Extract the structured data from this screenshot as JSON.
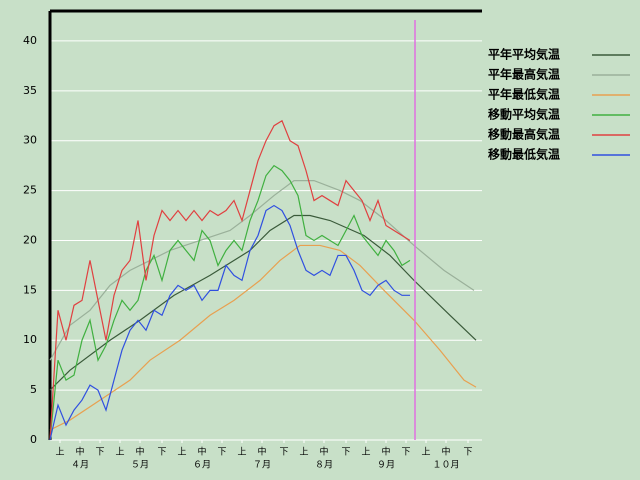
{
  "chart_data": {
    "type": "line",
    "xlim": [
      0,
      216
    ],
    "ylim": [
      0,
      43
    ],
    "yticks": [
      0,
      5,
      10,
      15,
      20,
      25,
      30,
      35,
      40
    ],
    "xticks": [
      {
        "value": 5,
        "label": "上"
      },
      {
        "value": 15,
        "label": "中"
      },
      {
        "value": 25,
        "label": "下"
      },
      {
        "value": 35,
        "label": "上"
      },
      {
        "value": 45,
        "label": "中"
      },
      {
        "value": 56,
        "label": "下"
      },
      {
        "value": 66,
        "label": "上"
      },
      {
        "value": 76,
        "label": "中"
      },
      {
        "value": 86,
        "label": "下"
      },
      {
        "value": 96,
        "label": "上"
      },
      {
        "value": 106,
        "label": "中"
      },
      {
        "value": 117,
        "label": "下"
      },
      {
        "value": 127,
        "label": "上"
      },
      {
        "value": 137,
        "label": "中"
      },
      {
        "value": 148,
        "label": "下"
      },
      {
        "value": 158,
        "label": "上"
      },
      {
        "value": 168,
        "label": "中"
      },
      {
        "value": 178,
        "label": "下"
      },
      {
        "value": 188,
        "label": "上"
      },
      {
        "value": 198,
        "label": "中"
      },
      {
        "value": 209,
        "label": "下"
      }
    ],
    "month_ticks": [
      {
        "value": 15,
        "label": "４月"
      },
      {
        "value": 45,
        "label": "５月"
      },
      {
        "value": 76,
        "label": "６月"
      },
      {
        "value": 106,
        "label": "７月"
      },
      {
        "value": 137,
        "label": "８月"
      },
      {
        "value": 168,
        "label": "９月"
      },
      {
        "value": 198,
        "label": "１０月"
      }
    ],
    "grid": true,
    "marker_line": {
      "value": 182.5,
      "color": "#e070e0"
    },
    "series": [
      {
        "name": "平年平均気温",
        "color": "#3a5a3a",
        "x": [
          0,
          10,
          30,
          45,
          62,
          80,
          100,
          110,
          122,
          130,
          140,
          157,
          170,
          182,
          200,
          213
        ],
        "values": [
          5,
          7,
          10,
          12,
          14.5,
          16.5,
          19,
          21,
          22.5,
          22.5,
          22,
          20.5,
          18.5,
          16,
          12.5,
          10
        ]
      },
      {
        "name": "平年最高気温",
        "color": "#9ab09a",
        "x": [
          0,
          10,
          20,
          30,
          40,
          50,
          60,
          75,
          90,
          100,
          112,
          122,
          132,
          145,
          155,
          168,
          182,
          197,
          212
        ],
        "values": [
          8,
          11.5,
          13,
          15.5,
          17,
          18,
          19,
          20,
          21,
          22.5,
          24.5,
          26,
          26,
          25,
          24,
          22,
          19.5,
          17,
          15
        ]
      },
      {
        "name": "平年最低気温",
        "color": "#e8a050",
        "x": [
          0,
          10,
          25,
          40,
          50,
          65,
          80,
          92,
          105,
          115,
          125,
          135,
          145,
          155,
          167,
          182,
          195,
          207,
          213
        ],
        "values": [
          1,
          2,
          4,
          6,
          8,
          10,
          12.5,
          14,
          16,
          18,
          19.5,
          19.5,
          19,
          17.5,
          15,
          12,
          9,
          6,
          5.3
        ]
      },
      {
        "name": "移動平均気温",
        "color": "#40b040",
        "x": [
          0,
          4,
          8,
          12,
          16,
          20,
          24,
          28,
          32,
          36,
          40,
          44,
          48,
          52,
          56,
          60,
          64,
          68,
          72,
          76,
          80,
          84,
          88,
          92,
          96,
          100,
          104,
          108,
          112,
          116,
          120,
          124,
          128,
          132,
          136,
          140,
          144,
          148,
          152,
          156,
          160,
          164,
          168,
          172,
          176,
          180
        ],
        "values": [
          0,
          8,
          6,
          6.5,
          10,
          12,
          8,
          9.5,
          12,
          14,
          13,
          14,
          17,
          18.5,
          16,
          19,
          20,
          19,
          18,
          21,
          20,
          17.5,
          19,
          20,
          19,
          22,
          24,
          26.5,
          27.5,
          27,
          26,
          24.5,
          20.5,
          20,
          20.5,
          20,
          19.5,
          21,
          22.5,
          20.5,
          19.5,
          18.5,
          20,
          19,
          17.5,
          18
        ]
      },
      {
        "name": "移動最高気温",
        "color": "#e04040",
        "x": [
          0,
          4,
          8,
          12,
          16,
          20,
          24,
          28,
          32,
          36,
          40,
          44,
          48,
          52,
          56,
          60,
          64,
          68,
          72,
          76,
          80,
          84,
          88,
          92,
          96,
          100,
          104,
          108,
          112,
          116,
          120,
          124,
          128,
          132,
          136,
          140,
          144,
          148,
          152,
          156,
          160,
          164,
          168,
          172,
          176,
          180
        ],
        "values": [
          0,
          13,
          10,
          13.5,
          14,
          18,
          14,
          10,
          14.5,
          17,
          18,
          22,
          16,
          20.5,
          23,
          22,
          23,
          22,
          23,
          22,
          23,
          22.5,
          23,
          24,
          22,
          25,
          28,
          30,
          31.5,
          32,
          30,
          29.5,
          27,
          24,
          24.5,
          24,
          23.5,
          26,
          25,
          24,
          22,
          24,
          21.5,
          21,
          20.5,
          20
        ]
      },
      {
        "name": "移動最低気温",
        "color": "#3050e0",
        "x": [
          0,
          4,
          8,
          12,
          16,
          20,
          24,
          28,
          32,
          36,
          40,
          44,
          48,
          52,
          56,
          60,
          64,
          68,
          72,
          76,
          80,
          84,
          88,
          92,
          96,
          100,
          104,
          108,
          112,
          116,
          120,
          124,
          128,
          132,
          136,
          140,
          144,
          148,
          152,
          156,
          160,
          164,
          168,
          172,
          176,
          180
        ],
        "values": [
          0,
          3.5,
          1.5,
          3,
          4,
          5.5,
          5,
          3,
          6,
          9,
          11,
          12,
          11,
          13,
          12.5,
          14.5,
          15.5,
          15,
          15.5,
          14,
          15,
          15,
          17.5,
          16.5,
          16,
          19,
          20.5,
          23,
          23.5,
          23,
          21.5,
          19,
          17,
          16.5,
          17,
          16.5,
          18.5,
          18.5,
          17,
          15,
          14.5,
          15.5,
          16,
          15,
          14.5,
          14.5
        ]
      }
    ]
  }
}
